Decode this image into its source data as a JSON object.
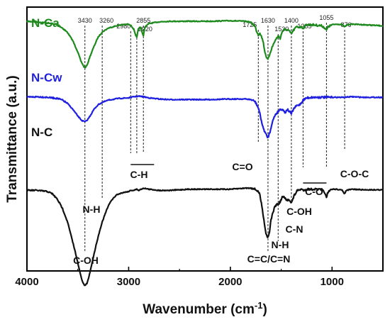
{
  "chart_data": {
    "type": "line",
    "title": "",
    "xlabel": "Wavenumber (cm",
    "xlabel_sup": "-1",
    "xlabel_end": ")",
    "ylabel": "Transmittance (a.u.)",
    "xlim": [
      4000,
      500
    ],
    "x_reversed": true,
    "x_ticks": [
      4000,
      3000,
      2000,
      1000
    ],
    "x_tick_labels": [
      "4000",
      "3000",
      "2000",
      "1000"
    ],
    "grid": false,
    "series": [
      {
        "name": "N-Ca",
        "color": "#1e8a1e",
        "offset": 0.0,
        "points": [
          [
            4000,
            0.05
          ],
          [
            3900,
            0.055
          ],
          [
            3800,
            0.065
          ],
          [
            3700,
            0.08
          ],
          [
            3650,
            0.11
          ],
          [
            3600,
            0.15
          ],
          [
            3550,
            0.22
          ],
          [
            3500,
            0.32
          ],
          [
            3470,
            0.4
          ],
          [
            3440,
            0.45
          ],
          [
            3430,
            0.46
          ],
          [
            3410,
            0.44
          ],
          [
            3380,
            0.36
          ],
          [
            3340,
            0.27
          ],
          [
            3300,
            0.19
          ],
          [
            3260,
            0.145
          ],
          [
            3200,
            0.11
          ],
          [
            3100,
            0.085
          ],
          [
            3050,
            0.08
          ],
          [
            3000,
            0.075
          ],
          [
            2980,
            0.085
          ],
          [
            2950,
            0.12
          ],
          [
            2930,
            0.18
          ],
          [
            2920,
            0.19
          ],
          [
            2905,
            0.12
          ],
          [
            2880,
            0.1
          ],
          [
            2870,
            0.14
          ],
          [
            2855,
            0.18
          ],
          [
            2840,
            0.1
          ],
          [
            2800,
            0.07
          ],
          [
            2700,
            0.055
          ],
          [
            2600,
            0.05
          ],
          [
            2400,
            0.05
          ],
          [
            2200,
            0.05
          ],
          [
            2000,
            0.045
          ],
          [
            1850,
            0.05
          ],
          [
            1800,
            0.06
          ],
          [
            1760,
            0.09
          ],
          [
            1740,
            0.14
          ],
          [
            1725,
            0.17
          ],
          [
            1710,
            0.15
          ],
          [
            1700,
            0.17
          ],
          [
            1680,
            0.22
          ],
          [
            1660,
            0.32
          ],
          [
            1640,
            0.38
          ],
          [
            1630,
            0.39
          ],
          [
            1610,
            0.33
          ],
          [
            1590,
            0.28
          ],
          [
            1560,
            0.22
          ],
          [
            1530,
            0.18
          ],
          [
            1510,
            0.2
          ],
          [
            1490,
            0.14
          ],
          [
            1460,
            0.12
          ],
          [
            1430,
            0.13
          ],
          [
            1400,
            0.16
          ],
          [
            1380,
            0.13
          ],
          [
            1350,
            0.1
          ],
          [
            1300,
            0.1
          ],
          [
            1285,
            0.11
          ],
          [
            1250,
            0.08
          ],
          [
            1200,
            0.08
          ],
          [
            1150,
            0.085
          ],
          [
            1100,
            0.09
          ],
          [
            1070,
            0.11
          ],
          [
            1055,
            0.13
          ],
          [
            1040,
            0.1
          ],
          [
            1000,
            0.08
          ],
          [
            950,
            0.075
          ],
          [
            900,
            0.08
          ],
          [
            876,
            0.1
          ],
          [
            850,
            0.08
          ],
          [
            800,
            0.075
          ],
          [
            700,
            0.08
          ],
          [
            600,
            0.085
          ],
          [
            500,
            0.09
          ]
        ]
      },
      {
        "name": "N-Cw",
        "color": "#1f1fe0",
        "offset": 0.0,
        "points": [
          [
            4000,
            0.395
          ],
          [
            3900,
            0.39
          ],
          [
            3800,
            0.395
          ],
          [
            3700,
            0.405
          ],
          [
            3650,
            0.42
          ],
          [
            3600,
            0.45
          ],
          [
            3550,
            0.5
          ],
          [
            3500,
            0.56
          ],
          [
            3460,
            0.6
          ],
          [
            3430,
            0.61
          ],
          [
            3410,
            0.6
          ],
          [
            3380,
            0.56
          ],
          [
            3340,
            0.5
          ],
          [
            3300,
            0.46
          ],
          [
            3260,
            0.44
          ],
          [
            3200,
            0.42
          ],
          [
            3100,
            0.405
          ],
          [
            3000,
            0.4
          ],
          [
            2950,
            0.39
          ],
          [
            2900,
            0.385
          ],
          [
            2855,
            0.39
          ],
          [
            2800,
            0.4
          ],
          [
            2700,
            0.41
          ],
          [
            2600,
            0.415
          ],
          [
            2400,
            0.415
          ],
          [
            2200,
            0.415
          ],
          [
            2000,
            0.41
          ],
          [
            1850,
            0.41
          ],
          [
            1800,
            0.415
          ],
          [
            1760,
            0.43
          ],
          [
            1740,
            0.46
          ],
          [
            1720,
            0.5
          ],
          [
            1700,
            0.58
          ],
          [
            1680,
            0.66
          ],
          [
            1660,
            0.7
          ],
          [
            1640,
            0.74
          ],
          [
            1630,
            0.75
          ],
          [
            1610,
            0.7
          ],
          [
            1590,
            0.62
          ],
          [
            1560,
            0.55
          ],
          [
            1530,
            0.52
          ],
          [
            1510,
            0.5
          ],
          [
            1490,
            0.5
          ],
          [
            1460,
            0.53
          ],
          [
            1440,
            0.5
          ],
          [
            1420,
            0.52
          ],
          [
            1400,
            0.54
          ],
          [
            1380,
            0.5
          ],
          [
            1350,
            0.47
          ],
          [
            1320,
            0.46
          ],
          [
            1300,
            0.44
          ],
          [
            1285,
            0.42
          ],
          [
            1250,
            0.4
          ],
          [
            1200,
            0.395
          ],
          [
            1100,
            0.395
          ],
          [
            1000,
            0.395
          ],
          [
            900,
            0.395
          ],
          [
            800,
            0.39
          ],
          [
            700,
            0.395
          ],
          [
            600,
            0.395
          ],
          [
            500,
            0.395
          ]
        ]
      },
      {
        "name": "N-C",
        "color": "#111111",
        "offset": 0.0,
        "points": [
          [
            4000,
            0.74
          ],
          [
            3900,
            0.74
          ],
          [
            3800,
            0.75
          ],
          [
            3750,
            0.77
          ],
          [
            3700,
            0.82
          ],
          [
            3650,
            0.9
          ],
          [
            3600,
            1.02
          ],
          [
            3560,
            1.16
          ],
          [
            3520,
            1.3
          ],
          [
            3490,
            1.42
          ],
          [
            3460,
            1.53
          ],
          [
            3440,
            1.57
          ],
          [
            3430,
            1.58
          ],
          [
            3410,
            1.56
          ],
          [
            3390,
            1.5
          ],
          [
            3360,
            1.38
          ],
          [
            3320,
            1.22
          ],
          [
            3280,
            1.08
          ],
          [
            3260,
            1.02
          ],
          [
            3220,
            0.92
          ],
          [
            3180,
            0.84
          ],
          [
            3120,
            0.78
          ],
          [
            3060,
            0.76
          ],
          [
            3000,
            0.75
          ],
          [
            2980,
            0.74
          ],
          [
            2950,
            0.74
          ],
          [
            2920,
            0.73
          ],
          [
            2900,
            0.74
          ],
          [
            2855,
            0.72
          ],
          [
            2800,
            0.73
          ],
          [
            2700,
            0.74
          ],
          [
            2600,
            0.74
          ],
          [
            2400,
            0.73
          ],
          [
            2200,
            0.73
          ],
          [
            2000,
            0.73
          ],
          [
            1850,
            0.72
          ],
          [
            1780,
            0.72
          ],
          [
            1760,
            0.73
          ],
          [
            1740,
            0.74
          ],
          [
            1725,
            0.75
          ],
          [
            1710,
            0.78
          ],
          [
            1690,
            0.88
          ],
          [
            1670,
            1.0
          ],
          [
            1650,
            1.12
          ],
          [
            1635,
            1.15
          ],
          [
            1630,
            1.155
          ],
          [
            1615,
            1.1
          ],
          [
            1600,
            1.0
          ],
          [
            1580,
            0.93
          ],
          [
            1560,
            0.88
          ],
          [
            1540,
            0.86
          ],
          [
            1530,
            0.865
          ],
          [
            1510,
            0.84
          ],
          [
            1490,
            0.8
          ],
          [
            1470,
            0.8
          ],
          [
            1450,
            0.83
          ],
          [
            1420,
            0.82
          ],
          [
            1400,
            0.85
          ],
          [
            1390,
            0.83
          ],
          [
            1370,
            0.78
          ],
          [
            1340,
            0.74
          ],
          [
            1300,
            0.73
          ],
          [
            1285,
            0.74
          ],
          [
            1250,
            0.73
          ],
          [
            1200,
            0.73
          ],
          [
            1150,
            0.73
          ],
          [
            1100,
            0.735
          ],
          [
            1070,
            0.76
          ],
          [
            1055,
            0.81
          ],
          [
            1045,
            0.77
          ],
          [
            1020,
            0.74
          ],
          [
            1000,
            0.73
          ],
          [
            950,
            0.73
          ],
          [
            900,
            0.74
          ],
          [
            876,
            0.77
          ],
          [
            860,
            0.74
          ],
          [
            800,
            0.73
          ],
          [
            700,
            0.735
          ],
          [
            600,
            0.735
          ],
          [
            500,
            0.735
          ]
        ]
      }
    ],
    "peak_markers": [
      {
        "wn": 3430,
        "label": "3430"
      },
      {
        "wn": 3260,
        "label": "3260"
      },
      {
        "wn": 2980,
        "label": "2980"
      },
      {
        "wn": 2920,
        "label": "2920"
      },
      {
        "wn": 2855,
        "label": "2855"
      },
      {
        "wn": 1725,
        "label": "1725"
      },
      {
        "wn": 1630,
        "label": "1630"
      },
      {
        "wn": 1530,
        "label": "1530"
      },
      {
        "wn": 1400,
        "label": "1400"
      },
      {
        "wn": 1285,
        "label": "1285"
      },
      {
        "wn": 1055,
        "label": "1055"
      },
      {
        "wn": 876,
        "label": "876"
      }
    ],
    "annotations": [
      {
        "text": "C-OH",
        "wn": 3430
      },
      {
        "text": "N-H",
        "wn": 3200
      },
      {
        "text": "C-H",
        "wn": 2900
      },
      {
        "text": "C=O",
        "wn": 1850
      },
      {
        "text": "N-H",
        "wn": 1590
      },
      {
        "text": "C=C/C=N",
        "wn": 1630
      },
      {
        "text": "C-N",
        "wn": 1440
      },
      {
        "text": "C-OH",
        "wn": 1390
      },
      {
        "text": "C-O",
        "wn": 1160
      },
      {
        "text": "C-O-C",
        "wn": 820
      }
    ],
    "annotation_bars": [
      {
        "from": 2980,
        "to": 2750
      },
      {
        "from": 1285,
        "to": 1055
      }
    ]
  }
}
